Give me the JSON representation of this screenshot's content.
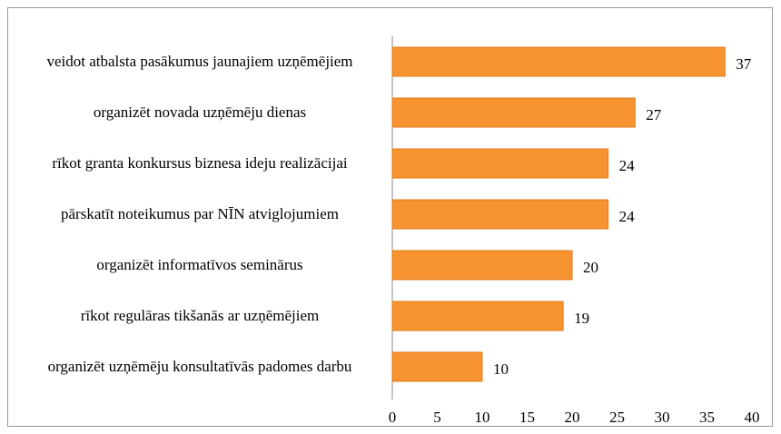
{
  "chart_data": {
    "type": "bar",
    "orientation": "horizontal",
    "categories": [
      "veidot atbalsta pasākumus jaunajiem uzņēmējiem",
      "organizēt novada uzņēmēju dienas",
      "rīkot granta konkursus biznesa ideju realizācijai",
      "pārskatīt noteikumus par NĪN atviglojumiem",
      "organizēt informatīvos seminārus",
      "rīkot regulāras tikšanās ar uzņēmējiem",
      "organizēt uzņēmēju konsultatīvās padomes darbu"
    ],
    "values": [
      37,
      27,
      24,
      24,
      20,
      19,
      10
    ],
    "color": "#f79330",
    "xlim": [
      0,
      40
    ],
    "xticks": [
      0,
      5,
      10,
      15,
      20,
      25,
      30,
      35,
      40
    ],
    "grid": false
  }
}
